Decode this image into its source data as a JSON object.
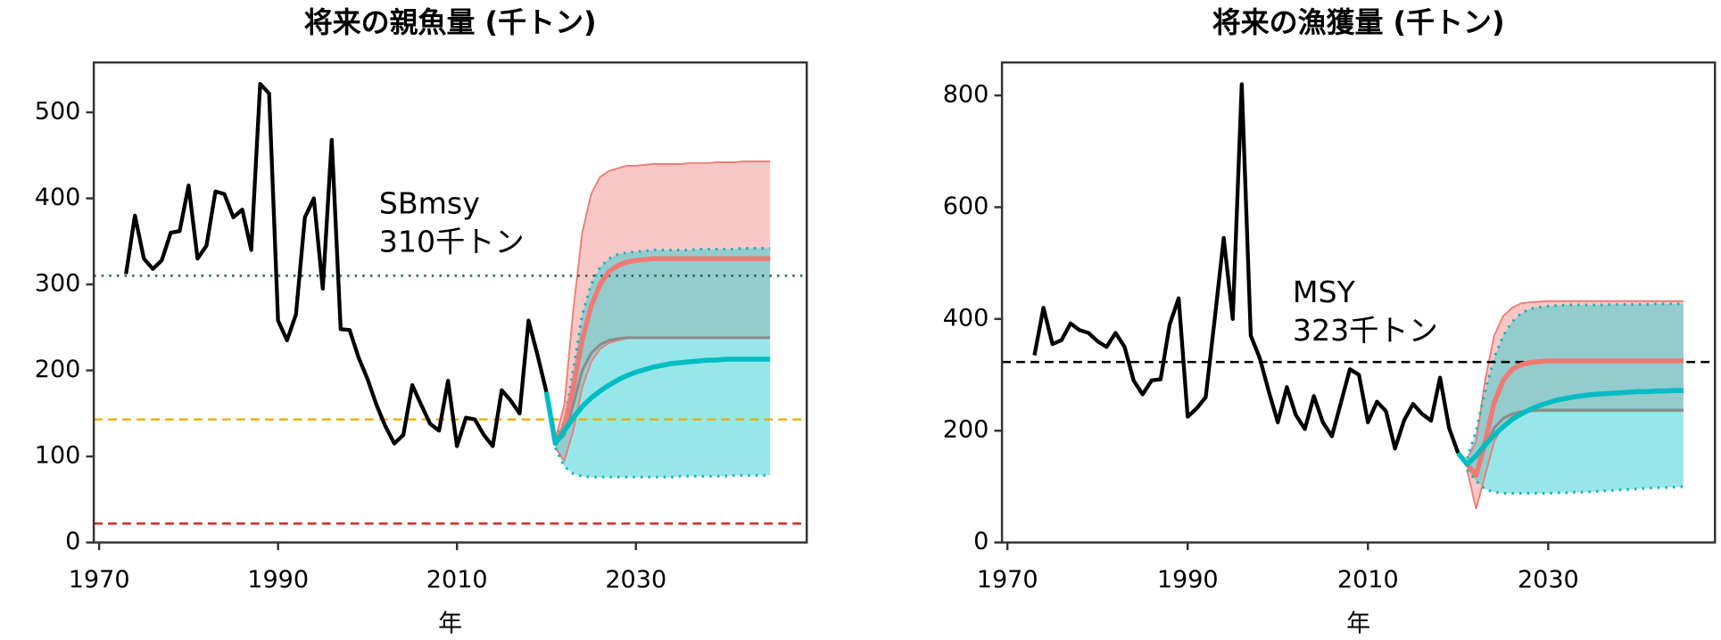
{
  "chart_data": [
    {
      "type": "line",
      "title": "将来の親魚量 (千トン)",
      "xlabel": "年",
      "xlim": [
        1969.4,
        2049.1
      ],
      "ylim": [
        0,
        558
      ],
      "xticks": [
        1970,
        1990,
        2010,
        2030
      ],
      "yticks": [
        0,
        100,
        200,
        300,
        400,
        500
      ],
      "history": {
        "color": "#000000",
        "x": [
          1973,
          1974,
          1975,
          1976,
          1977,
          1978,
          1979,
          1980,
          1981,
          1982,
          1983,
          1984,
          1985,
          1986,
          1987,
          1988,
          1989,
          1990,
          1991,
          1992,
          1993,
          1994,
          1995,
          1996,
          1997,
          1998,
          1999,
          2000,
          2001,
          2002,
          2003,
          2004,
          2005,
          2006,
          2007,
          2008,
          2009,
          2010,
          2011,
          2012,
          2013,
          2014,
          2015,
          2016,
          2017,
          2018,
          2019,
          2020
        ],
        "values": [
          312,
          380,
          330,
          318,
          328,
          360,
          362,
          415,
          330,
          345,
          408,
          405,
          378,
          387,
          340,
          533,
          522,
          258,
          235,
          265,
          378,
          400,
          295,
          468,
          248,
          247,
          215,
          190,
          160,
          135,
          115,
          125,
          183,
          160,
          138,
          130,
          188,
          112,
          145,
          143,
          125,
          112,
          177,
          165,
          150,
          258,
          218,
          175
        ]
      },
      "projection": {
        "x": [
          2020,
          2021,
          2022,
          2023,
          2024,
          2025,
          2026,
          2027,
          2028,
          2029,
          2030,
          2031,
          2032,
          2033,
          2034,
          2035,
          2036,
          2037,
          2038,
          2039,
          2040,
          2041,
          2042,
          2043,
          2044,
          2045
        ],
        "bands": [
          {
            "color": "#f4928d",
            "border": "solid",
            "border_color": "#f07a73",
            "lower": [
              null,
              110,
              95,
              130,
              180,
              210,
              225,
              232,
              235,
              237,
              238,
              238,
              238,
              238,
              238,
              238,
              238,
              238,
              238,
              238,
              238,
              238,
              238,
              238,
              238,
              238
            ],
            "upper": [
              null,
              120,
              160,
              270,
              360,
              405,
              425,
              432,
              435,
              438,
              438,
              439,
              440,
              440,
              440,
              440,
              441,
              441,
              441,
              442,
              442,
              442,
              443,
              443,
              443,
              443
            ]
          },
          {
            "color": "#2fcfd5",
            "border": "dotted",
            "border_color": "#16b3ba",
            "lower": [
              null,
              110,
              88,
              80,
              77,
              76,
              76,
              76,
              76,
              76,
              76,
              76,
              76,
              76,
              76,
              77,
              77,
              77,
              77,
              77,
              77,
              78,
              78,
              78,
              78,
              78
            ],
            "upper": [
              null,
              120,
              140,
              200,
              265,
              300,
              320,
              330,
              335,
              337,
              338,
              339,
              340,
              340,
              340,
              340,
              340,
              341,
              341,
              341,
              341,
              341,
              342,
              342,
              342,
              342
            ]
          }
        ],
        "lines": [
          {
            "color": "#8c8c8c",
            "linewidth": 2.5,
            "values": [
              null,
              115,
              125,
              160,
              200,
              220,
              230,
              235,
              237,
              238,
              238,
              238,
              238,
              238,
              238,
              238,
              238,
              238,
              238,
              238,
              238,
              238,
              238,
              238,
              238,
              238
            ]
          },
          {
            "color": "#f07a73",
            "linewidth": 4.5,
            "values": [
              null,
              115,
              135,
              180,
              235,
              275,
              300,
              315,
              322,
              326,
              328,
              329,
              330,
              330,
              330,
              330,
              330,
              330,
              330,
              330,
              330,
              330,
              330,
              330,
              330,
              330
            ]
          },
          {
            "color": "#00bcc3",
            "linewidth": 4.5,
            "values": [
              175,
              115,
              130,
              145,
              158,
              168,
              176,
              183,
              189,
              194,
              198,
              201,
              204,
              206,
              208,
              209,
              210,
              211,
              212,
              212,
              213,
              213,
              213,
              213,
              213,
              213
            ]
          }
        ]
      },
      "hlines": [
        {
          "value": 310,
          "color": "#1e5f4f",
          "dash": "dotted"
        },
        {
          "value": 143,
          "color": "#e6b000",
          "dash": "dashed"
        },
        {
          "value": 22,
          "color": "#d62728",
          "dash": "dashed"
        }
      ],
      "annotation": [
        "SBmsy",
        "310千トン"
      ]
    },
    {
      "type": "line",
      "title": "将来の漁獲量 (千トン)",
      "xlabel": "年",
      "xlim": [
        1969.4,
        2048.5
      ],
      "ylim": [
        0,
        859
      ],
      "xticks": [
        1970,
        1990,
        2010,
        2030
      ],
      "yticks": [
        0,
        200,
        400,
        600,
        800
      ],
      "history": {
        "color": "#000000",
        "x": [
          1973,
          1974,
          1975,
          1976,
          1977,
          1978,
          1979,
          1980,
          1981,
          1982,
          1983,
          1984,
          1985,
          1986,
          1987,
          1988,
          1989,
          1990,
          1991,
          1992,
          1993,
          1994,
          1995,
          1996,
          1997,
          1998,
          1999,
          2000,
          2001,
          2002,
          2003,
          2004,
          2005,
          2006,
          2007,
          2008,
          2009,
          2010,
          2011,
          2012,
          2013,
          2014,
          2015,
          2016,
          2017,
          2018,
          2019,
          2020
        ],
        "values": [
          335,
          420,
          355,
          362,
          392,
          380,
          375,
          360,
          350,
          375,
          350,
          290,
          265,
          290,
          292,
          390,
          437,
          225,
          240,
          260,
          400,
          545,
          400,
          820,
          370,
          330,
          270,
          215,
          278,
          228,
          203,
          262,
          215,
          190,
          250,
          310,
          300,
          215,
          252,
          235,
          168,
          218,
          248,
          230,
          218,
          295,
          205,
          160
        ]
      },
      "projection": {
        "x": [
          2020,
          2021,
          2022,
          2023,
          2024,
          2025,
          2026,
          2027,
          2028,
          2029,
          2030,
          2031,
          2032,
          2033,
          2034,
          2035,
          2036,
          2037,
          2038,
          2039,
          2040,
          2041,
          2042,
          2043,
          2044,
          2045
        ],
        "bands": [
          {
            "color": "#f4928d",
            "border": "solid",
            "border_color": "#f07a73",
            "lower": [
              null,
              130,
              60,
              120,
              180,
              210,
              225,
              232,
              234,
              235,
              235,
              235,
              235,
              235,
              235,
              235,
              235,
              235,
              235,
              235,
              235,
              235,
              235,
              235,
              235,
              235
            ],
            "upper": [
              null,
              150,
              180,
              290,
              370,
              405,
              420,
              428,
              430,
              431,
              432,
              432,
              432,
              432,
              432,
              432,
              432,
              432,
              432,
              432,
              432,
              432,
              432,
              432,
              432,
              432
            ]
          },
          {
            "color": "#2fcfd5",
            "border": "dotted",
            "border_color": "#16b3ba",
            "lower": [
              null,
              130,
              110,
              95,
              90,
              88,
              88,
              88,
              88,
              88,
              88,
              89,
              89,
              90,
              90,
              91,
              92,
              93,
              94,
              95,
              96,
              97,
              98,
              98,
              99,
              100
            ],
            "upper": [
              null,
              150,
              200,
              270,
              330,
              370,
              395,
              410,
              418,
              421,
              423,
              424,
              425,
              425,
              425,
              425,
              425,
              426,
              426,
              426,
              426,
              426,
              427,
              427,
              427,
              427
            ]
          }
        ],
        "lines": [
          {
            "color": "#8c8c8c",
            "linewidth": 2.5,
            "values": [
              null,
              140,
              125,
              170,
              205,
              222,
              230,
              234,
              236,
              237,
              237,
              237,
              237,
              237,
              237,
              237,
              237,
              237,
              237,
              237,
              237,
              237,
              237,
              237,
              237,
              237
            ]
          },
          {
            "color": "#f07a73",
            "linewidth": 4.5,
            "values": [
              null,
              140,
              120,
              180,
              250,
              290,
              310,
              318,
              322,
              324,
              325,
              325,
              325,
              325,
              325,
              325,
              325,
              325,
              325,
              325,
              325,
              325,
              325,
              325,
              325,
              325
            ]
          },
          {
            "color": "#00bcc3",
            "linewidth": 4.5,
            "values": [
              160,
              140,
              155,
              175,
              192,
              207,
              220,
              230,
              238,
              245,
              250,
              255,
              258,
              261,
              263,
              265,
              266,
              267,
              268,
              269,
              270,
              270,
              271,
              271,
              272,
              272
            ]
          }
        ]
      },
      "hlines": [
        {
          "value": 323,
          "color": "#000000",
          "dash": "dashed"
        }
      ],
      "annotation": [
        "MSY",
        "323千トン"
      ]
    }
  ]
}
